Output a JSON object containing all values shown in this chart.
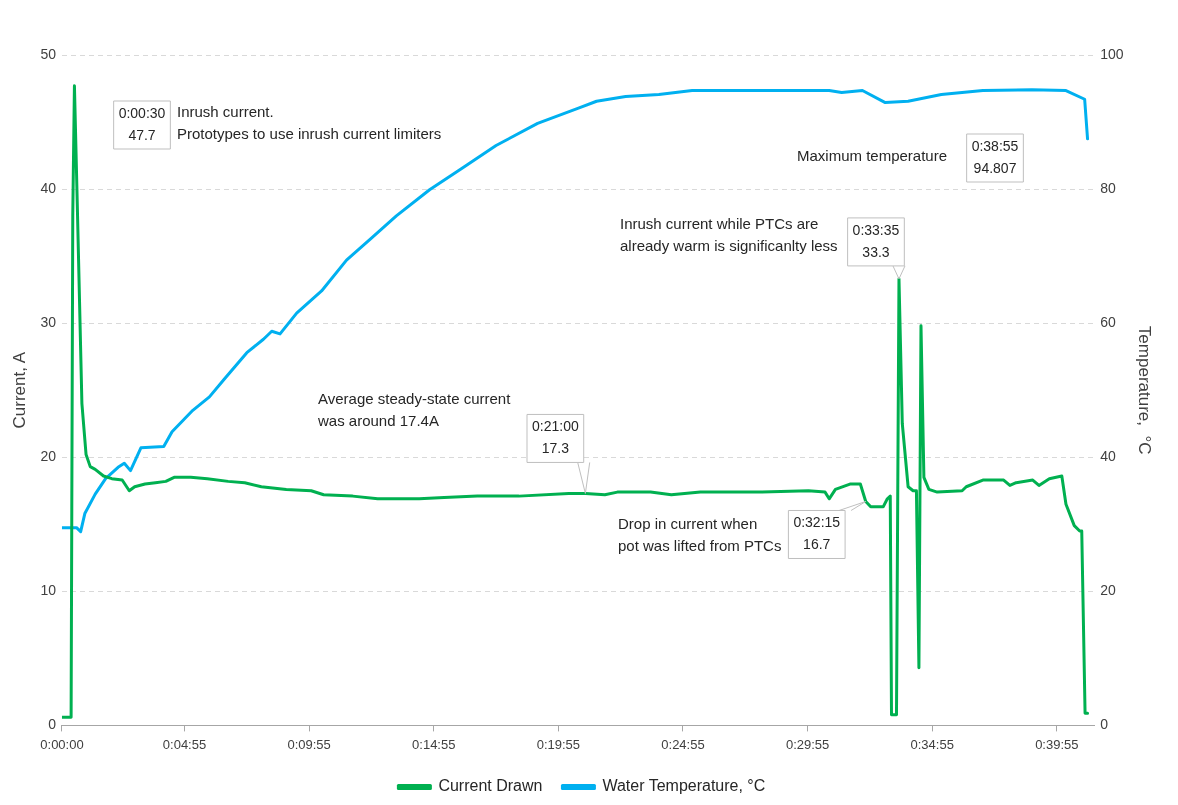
{
  "chart_data": {
    "type": "line",
    "ylabel": "Current, A",
    "y2label": "Temperature,  °C",
    "xlim": [
      0,
      0.6903
    ],
    "xticks": [
      {
        "value": 0,
        "label": "0:00:00"
      },
      {
        "value": 0.081944,
        "label": "0:04:55"
      },
      {
        "value": 0.165278,
        "label": "0:09:55"
      },
      {
        "value": 0.248611,
        "label": "0:14:55"
      },
      {
        "value": 0.331944,
        "label": "0:19:55"
      },
      {
        "value": 0.415278,
        "label": "0:24:55"
      },
      {
        "value": 0.498611,
        "label": "0:29:55"
      },
      {
        "value": 0.581944,
        "label": "0:34:55"
      },
      {
        "value": 0.665278,
        "label": "0:39:55"
      }
    ],
    "ylim": [
      0,
      50
    ],
    "yticks": [
      0,
      10,
      20,
      30,
      40,
      50
    ],
    "y2lim": [
      0,
      100
    ],
    "y2ticks": [
      0,
      20,
      40,
      60,
      80,
      100
    ],
    "grid": "y",
    "legend": "bottom",
    "marker": "none",
    "line_style": "solid",
    "series": [
      {
        "name": "Current Drawn",
        "color": "#00b050",
        "x": [
          0,
          0.00611,
          0.00722,
          0.00833,
          0.01,
          0.01333,
          0.01611,
          0.01889,
          0.02222,
          0.02778,
          0.03333,
          0.04028,
          0.045,
          0.04861,
          0.05556,
          0.0625,
          0.06944,
          0.075,
          0.08611,
          0.09722,
          0.11111,
          0.12222,
          0.13333,
          0.15,
          0.16667,
          0.175,
          0.19444,
          0.21111,
          0.23889,
          0.25556,
          0.27778,
          0.30556,
          0.33889,
          0.35,
          0.36306,
          0.37139,
          0.39361,
          0.4075,
          0.42694,
          0.46583,
          0.49917,
          0.51028,
          0.51306,
          0.51722,
          0.52694,
          0.53389,
          0.5375,
          0.54083,
          0.54917,
          0.55194,
          0.55389,
          0.55472,
          0.55806,
          0.55972,
          0.56194,
          0.56583,
          0.56917,
          0.57139,
          0.57306,
          0.57444,
          0.57639,
          0.57972,
          0.58528,
          0.60194,
          0.60472,
          0.61583,
          0.62972,
          0.63389,
          0.63806,
          0.64917,
          0.65333,
          0.66028,
          0.66861,
          0.67139,
          0.67694,
          0.68056,
          0.68194,
          0.68417,
          0.68583
        ],
        "values": [
          0.6,
          0.6,
          38,
          47.7,
          40,
          24,
          20.2,
          19.3,
          19.1,
          18.6,
          18.4,
          18.3,
          17.5,
          17.8,
          18.0,
          18.1,
          18.2,
          18.5,
          18.5,
          18.4,
          18.2,
          18.1,
          17.8,
          17.6,
          17.5,
          17.2,
          17.1,
          16.9,
          16.9,
          17.0,
          17.1,
          17.1,
          17.3,
          17.3,
          17.2,
          17.4,
          17.4,
          17.2,
          17.4,
          17.4,
          17.5,
          17.4,
          16.9,
          17.6,
          18.0,
          18.0,
          16.7,
          16.3,
          16.3,
          16.9,
          17.1,
          0.8,
          0.8,
          33.3,
          22.5,
          17.8,
          17.5,
          17.5,
          4.3,
          29.8,
          18.5,
          17.6,
          17.4,
          17.5,
          17.8,
          18.3,
          18.3,
          17.9,
          18.1,
          18.3,
          17.9,
          18.4,
          18.6,
          16.5,
          14.9,
          14.5,
          14.5,
          0.9,
          0.9
        ]
      },
      {
        "name": "Water Temperature, °C",
        "color": "#00b0f0",
        "axis": "y2",
        "x": [
          0,
          0.00972,
          0.0125,
          0.01528,
          0.02222,
          0.02917,
          0.0375,
          0.04167,
          0.04583,
          0.05278,
          0.06806,
          0.07361,
          0.0875,
          0.09861,
          0.10833,
          0.12361,
          0.13472,
          0.14028,
          0.14583,
          0.15694,
          0.17361,
          0.19028,
          0.20694,
          0.22361,
          0.24583,
          0.26806,
          0.29028,
          0.31806,
          0.34583,
          0.3575,
          0.37694,
          0.39917,
          0.42139,
          0.51306,
          0.52139,
          0.53528,
          0.55056,
          0.56583,
          0.58806,
          0.61583,
          0.64861,
          0.67139,
          0.68389,
          0.68583
        ],
        "values": [
          29.5,
          29.5,
          28.9,
          31.6,
          34.5,
          36.8,
          38.5,
          39.1,
          38.0,
          41.4,
          41.6,
          43.8,
          47.0,
          49.0,
          51.6,
          55.6,
          57.6,
          58.8,
          58.4,
          61.5,
          64.8,
          69.4,
          72.7,
          76.0,
          79.9,
          83.2,
          86.5,
          89.8,
          92.1,
          93.1,
          93.8,
          94.1,
          94.7,
          94.7,
          94.4,
          94.7,
          92.9,
          93.1,
          94.1,
          94.7,
          94.807,
          94.7,
          93.4,
          87.5
        ]
      }
    ],
    "annotations": [
      "0:00:30\n47.7",
      "Inrush current.\nPrototypes to use inrush current limiters",
      {
        "text": "0:21:00\n17.3",
        "x": 0.35,
        "y": 17.3
      },
      "Average steady-state current\nwas around 17.4A",
      {
        "text": "0:33:35\n33.3",
        "x": 0.55972,
        "y": 33.3
      },
      "Inrush current while PTCs are\nalready warm is significanlty less",
      {
        "text": "0:32:15\n16.7",
        "x": 0.5375,
        "y": 16.7
      },
      "Drop in current when\npot was lifted from PTCs",
      "0:38:55\n94.807",
      "Maximum temperature"
    ]
  }
}
